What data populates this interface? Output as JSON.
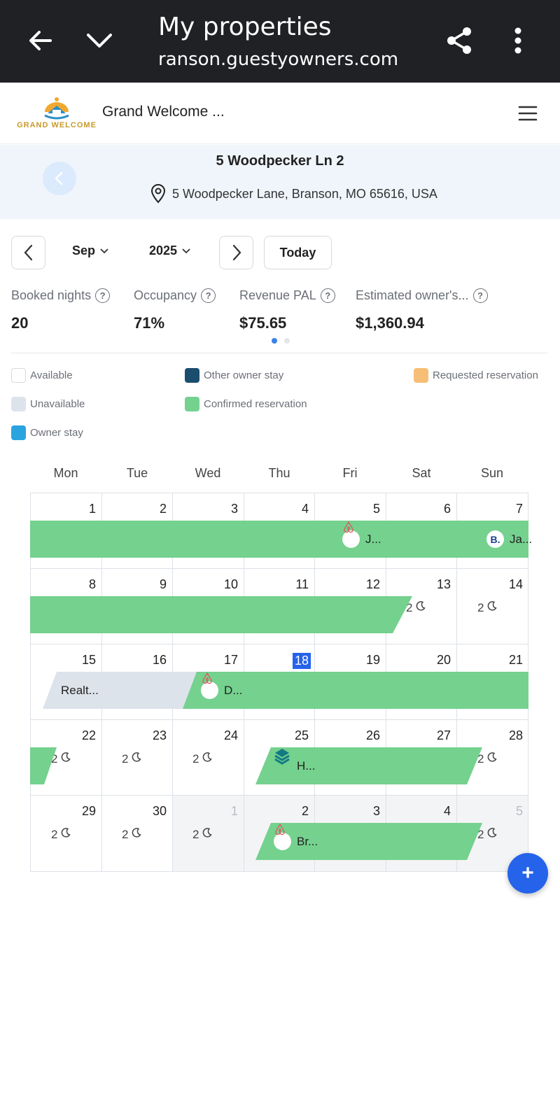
{
  "browser": {
    "title": "My properties",
    "url": "ranson.guestyowners.com"
  },
  "app": {
    "logo_text": "GRAND WELCOME",
    "title": "Grand Welcome ..."
  },
  "property": {
    "name": "5 Woodpecker Ln 2",
    "address": "5 Woodpecker Lane, Branson, MO 65616, USA"
  },
  "controls": {
    "month": "Sep",
    "year": "2025",
    "today_label": "Today"
  },
  "stats": [
    {
      "label": "Booked nights",
      "value": "20"
    },
    {
      "label": "Occupancy",
      "value": "71%"
    },
    {
      "label": "Revenue PAL",
      "value": "$75.65"
    },
    {
      "label": "Estimated owner's...",
      "value": "$1,360.94"
    }
  ],
  "legend": [
    {
      "label": "Available",
      "color": "#ffffff"
    },
    {
      "label": "Other owner stay",
      "color": "#1b4d6e"
    },
    {
      "label": "Requested reservation",
      "color": "#f7be76"
    },
    {
      "label": "Unavailable",
      "color": "#dde3ea"
    },
    {
      "label": "Confirmed reservation",
      "color": "#74d18e"
    },
    {
      "label": "Owner stay",
      "color": "#2aa4e0"
    }
  ],
  "weekdays": [
    "Mon",
    "Tue",
    "Wed",
    "Thu",
    "Fri",
    "Sat",
    "Sun"
  ],
  "weeks": [
    [
      "1",
      "2",
      "3",
      "4",
      "5",
      "6",
      "7"
    ],
    [
      "8",
      "9",
      "10",
      "11",
      "12",
      "13",
      "14"
    ],
    [
      "15",
      "16",
      "17",
      "18",
      "19",
      "20",
      "21"
    ],
    [
      "22",
      "23",
      "24",
      "25",
      "26",
      "27",
      "28"
    ],
    [
      "29",
      "30",
      "1",
      "2",
      "3",
      "4",
      "5"
    ]
  ],
  "today_date": "18",
  "min_stay_value": "2",
  "reservations": [
    {
      "label": "J...",
      "source": "airbnb-icon"
    },
    {
      "label": "Ja...",
      "source": "booking-icon"
    },
    {
      "label": "Realt...",
      "source": "none"
    },
    {
      "label": "D...",
      "source": "airbnb-icon"
    },
    {
      "label": "H...",
      "source": "stack-icon"
    },
    {
      "label": "Br...",
      "source": "airbnb-icon"
    }
  ],
  "fab_label": "+"
}
